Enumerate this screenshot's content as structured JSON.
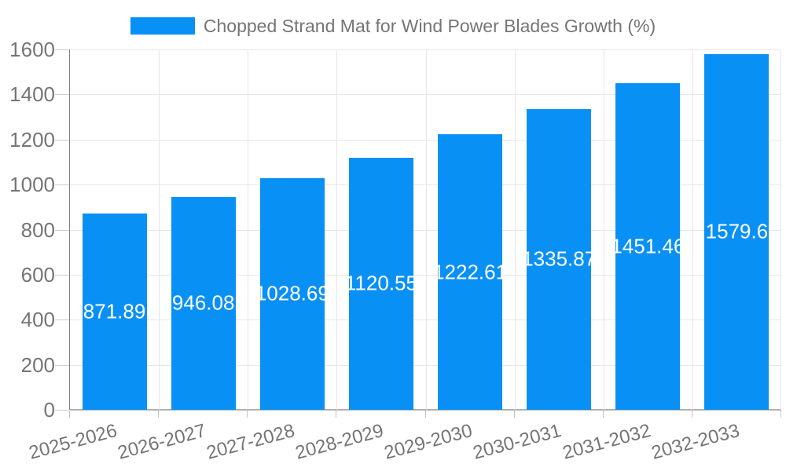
{
  "legend": {
    "swatch_color": "#0990F5"
  },
  "chart_data": {
    "type": "bar",
    "title": "Chopped Strand Mat for Wind Power Blades Growth (%)",
    "categories": [
      "2025-2026",
      "2026-2027",
      "2027-2028",
      "2028-2029",
      "2029-2030",
      "2030-2031",
      "2031-2032",
      "2032-2033"
    ],
    "values": [
      871.89,
      946.08,
      1028.69,
      1120.55,
      1222.61,
      1335.87,
      1451.46,
      1579.6
    ],
    "value_labels": [
      "871.89",
      "946.08",
      "1028.69",
      "1120.55",
      "1222.61",
      "1335.87",
      "1451.46",
      "1579.6"
    ],
    "xlabel": "",
    "ylabel": "",
    "ylim": [
      0,
      1600
    ],
    "yticks": [
      0,
      200,
      400,
      600,
      800,
      1000,
      1200,
      1400,
      1600
    ],
    "grid": true,
    "legend_position": "top-center",
    "bar_color": "#0990F5",
    "value_label_color": "#ffffff",
    "axis_text_color": "#757575",
    "gridline_color": "#e6e6e6"
  }
}
